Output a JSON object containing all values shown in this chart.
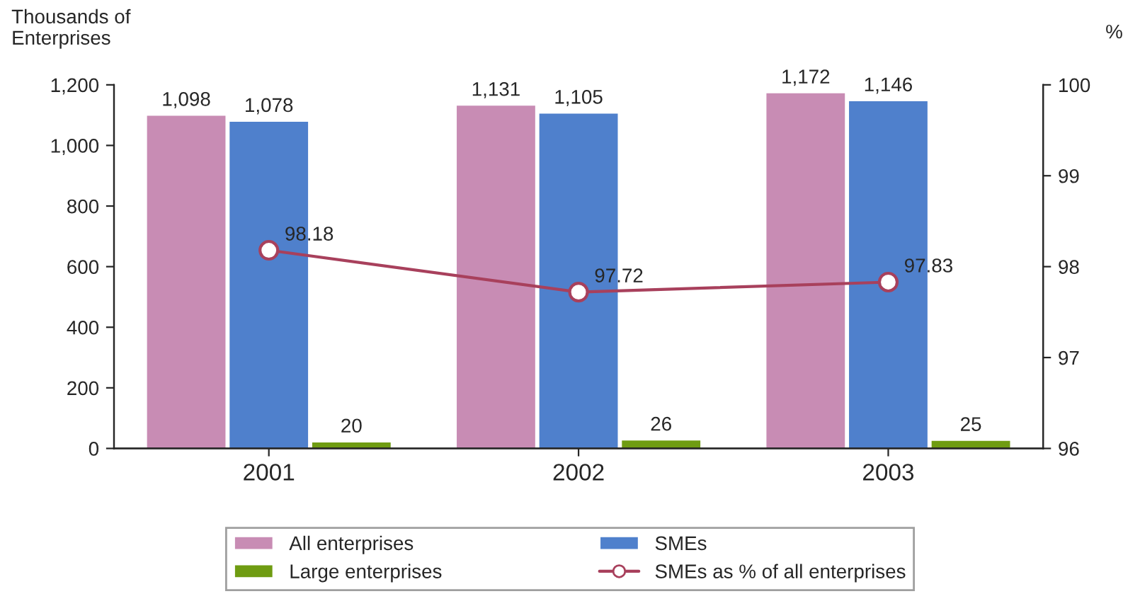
{
  "chart_data": {
    "type": "bar",
    "categories": [
      "2001",
      "2002",
      "2003"
    ],
    "ylabel": "Thousands of Enterprises",
    "y2label": "%",
    "series": [
      {
        "name": "All enterprises",
        "color": "#c88cb4",
        "values": [
          1098,
          1131,
          1172
        ],
        "value_labels": [
          "1,098",
          "1,131",
          "1,172"
        ]
      },
      {
        "name": "SMEs",
        "color": "#4f80cc",
        "values": [
          1078,
          1105,
          1146
        ],
        "value_labels": [
          "1,078",
          "1,105",
          "1,146"
        ]
      },
      {
        "name": "Large enterprises",
        "color": "#6f9c12",
        "values": [
          20,
          26,
          25
        ],
        "value_labels": [
          "20",
          "26",
          "25"
        ]
      },
      {
        "name": "SMEs as % of all enterprises",
        "type": "line",
        "axis": "y2",
        "color": "#a8405c",
        "marker": "circle",
        "values": [
          98.18,
          97.72,
          97.83
        ],
        "value_labels": [
          "98.18",
          "97.72",
          "97.83"
        ]
      }
    ],
    "ylim": [
      0,
      1200
    ],
    "yticks": [
      0,
      200,
      400,
      600,
      800,
      {
        "value": 1000,
        "label": "1,000"
      },
      {
        "value": 1200,
        "label": "1,200"
      }
    ],
    "y2lim": [
      96,
      100
    ],
    "y2ticks": [
      96,
      97,
      98,
      99,
      100
    ],
    "grid": false,
    "legend": "bottom"
  }
}
